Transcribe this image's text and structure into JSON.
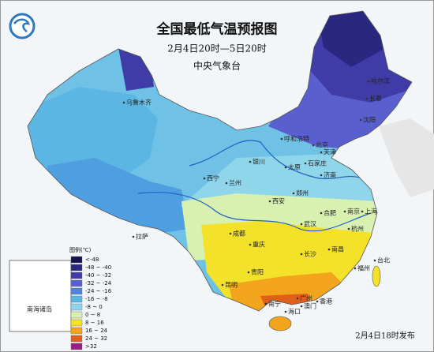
{
  "header": {
    "title": "全国最低气温预报图",
    "period": "2月4日20时—5日20时",
    "publisher": "中央气象台"
  },
  "legend": {
    "title": "图例(℃)",
    "items": [
      {
        "label": "<-48",
        "color": "#15124f"
      },
      {
        "label": "-48 ~ -40",
        "color": "#2a2780"
      },
      {
        "label": "-40 ~ -32",
        "color": "#3f3ca8"
      },
      {
        "label": "-32 ~ -24",
        "color": "#5a5fd0"
      },
      {
        "label": "-24 ~ -16",
        "color": "#4f86dc"
      },
      {
        "label": "-16 ~ -8",
        "color": "#5cb6e4"
      },
      {
        "label": "-8 ~ 0",
        "color": "#8fd6ea"
      },
      {
        "label": "0 ~ 8",
        "color": "#d8f0b0"
      },
      {
        "label": "8 ~ 16",
        "color": "#f4e22a"
      },
      {
        "label": "16 ~ 24",
        "color": "#f2a51c"
      },
      {
        "label": "24 ~ 32",
        "color": "#e0601a"
      },
      {
        "label": ">32",
        "color": "#9a1f84"
      }
    ]
  },
  "cities": [
    "乌鲁木齐",
    "哈尔滨",
    "长春",
    "沈阳",
    "呼和浩特",
    "北京",
    "天津",
    "石家庄",
    "太原",
    "银川",
    "兰州",
    "西宁",
    "济南",
    "郑州",
    "西安",
    "合肥",
    "南京",
    "上海",
    "武汉",
    "杭州",
    "成都",
    "重庆",
    "长沙",
    "南昌",
    "贵阳",
    "福州",
    "台北",
    "昆明",
    "南宁",
    "广州",
    "海口",
    "拉萨",
    "香港",
    "澳门"
  ],
  "inset": {
    "label": "南海诸岛"
  },
  "footer": {
    "release": "2月4日18时发布"
  }
}
